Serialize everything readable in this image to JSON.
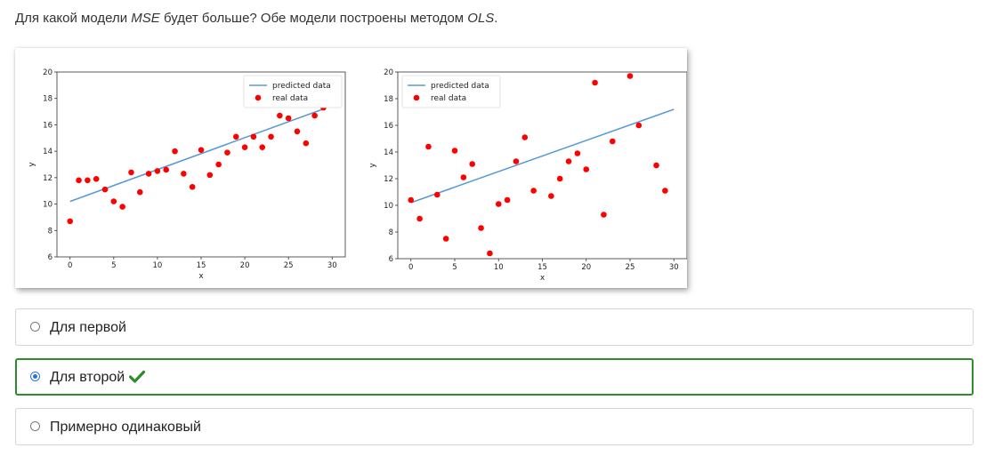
{
  "question": {
    "prefix": "Для какой модели ",
    "em1": "MSE",
    "middle": " будет больше? Обе модели построены методом ",
    "em2": "OLS",
    "suffix": "."
  },
  "options": [
    {
      "label": "Для первой",
      "selected": false,
      "correct": false
    },
    {
      "label": "Для второй",
      "selected": true,
      "correct": true,
      "mark_icon": "check-icon"
    },
    {
      "label": "Примерно одинаковый",
      "selected": false,
      "correct": false
    }
  ],
  "colors": {
    "real": "#ff0000",
    "predicted": "#5b9bd5",
    "correct_border": "#2e8b2e",
    "radio_selected": "#2a73d9"
  },
  "chart_data": [
    {
      "type": "scatter",
      "title": "",
      "xlabel": "x",
      "ylabel": "y",
      "xlim": [
        -1.5,
        31.5
      ],
      "ylim": [
        6,
        20
      ],
      "xticks": [
        0,
        5,
        10,
        15,
        20,
        25,
        30
      ],
      "yticks": [
        6,
        8,
        10,
        12,
        14,
        16,
        18,
        20
      ],
      "legend": {
        "position": "top-right",
        "entries": [
          "predicted data",
          "real data"
        ]
      },
      "series": [
        {
          "name": "predicted data",
          "kind": "line",
          "x": [
            0,
            29
          ],
          "y": [
            10.2,
            17.2
          ]
        },
        {
          "name": "real data",
          "kind": "scatter",
          "x": [
            0,
            1,
            2,
            3,
            4,
            5,
            6,
            7,
            8,
            9,
            10,
            11,
            12,
            13,
            14,
            15,
            16,
            17,
            18,
            19,
            20,
            21,
            22,
            23,
            24,
            25,
            26,
            27,
            28,
            29
          ],
          "y": [
            8.7,
            11.8,
            11.8,
            11.9,
            11.1,
            10.2,
            9.8,
            12.4,
            10.9,
            12.3,
            12.5,
            12.6,
            14.0,
            12.3,
            11.3,
            14.1,
            12.2,
            13.0,
            13.9,
            15.1,
            14.3,
            15.1,
            14.3,
            15.1,
            16.7,
            16.5,
            15.5,
            14.6,
            16.7,
            17.3
          ]
        }
      ]
    },
    {
      "type": "scatter",
      "title": "",
      "xlabel": "x",
      "ylabel": "y",
      "xlim": [
        -1.5,
        31.5
      ],
      "ylim": [
        6,
        20
      ],
      "xticks": [
        0,
        5,
        10,
        15,
        20,
        25,
        30
      ],
      "yticks": [
        6,
        8,
        10,
        12,
        14,
        16,
        18,
        20
      ],
      "legend": {
        "position": "top-left",
        "entries": [
          "predicted data",
          "real data"
        ]
      },
      "series": [
        {
          "name": "predicted data",
          "kind": "line",
          "x": [
            0,
            30
          ],
          "y": [
            10.2,
            17.2
          ]
        },
        {
          "name": "real data",
          "kind": "scatter",
          "x": [
            0,
            1,
            2,
            3,
            4,
            5,
            6,
            7,
            8,
            9,
            10,
            11,
            12,
            13,
            14,
            16,
            17,
            18,
            19,
            20,
            21,
            22,
            23,
            25,
            26,
            28,
            29
          ],
          "y": [
            10.4,
            9.0,
            14.4,
            10.8,
            7.5,
            14.1,
            12.1,
            13.1,
            8.3,
            6.4,
            10.1,
            10.4,
            13.3,
            15.1,
            11.1,
            10.7,
            12.0,
            13.3,
            13.9,
            12.7,
            19.2,
            9.3,
            14.8,
            19.7,
            16.0,
            13.0,
            11.1
          ]
        }
      ]
    }
  ]
}
